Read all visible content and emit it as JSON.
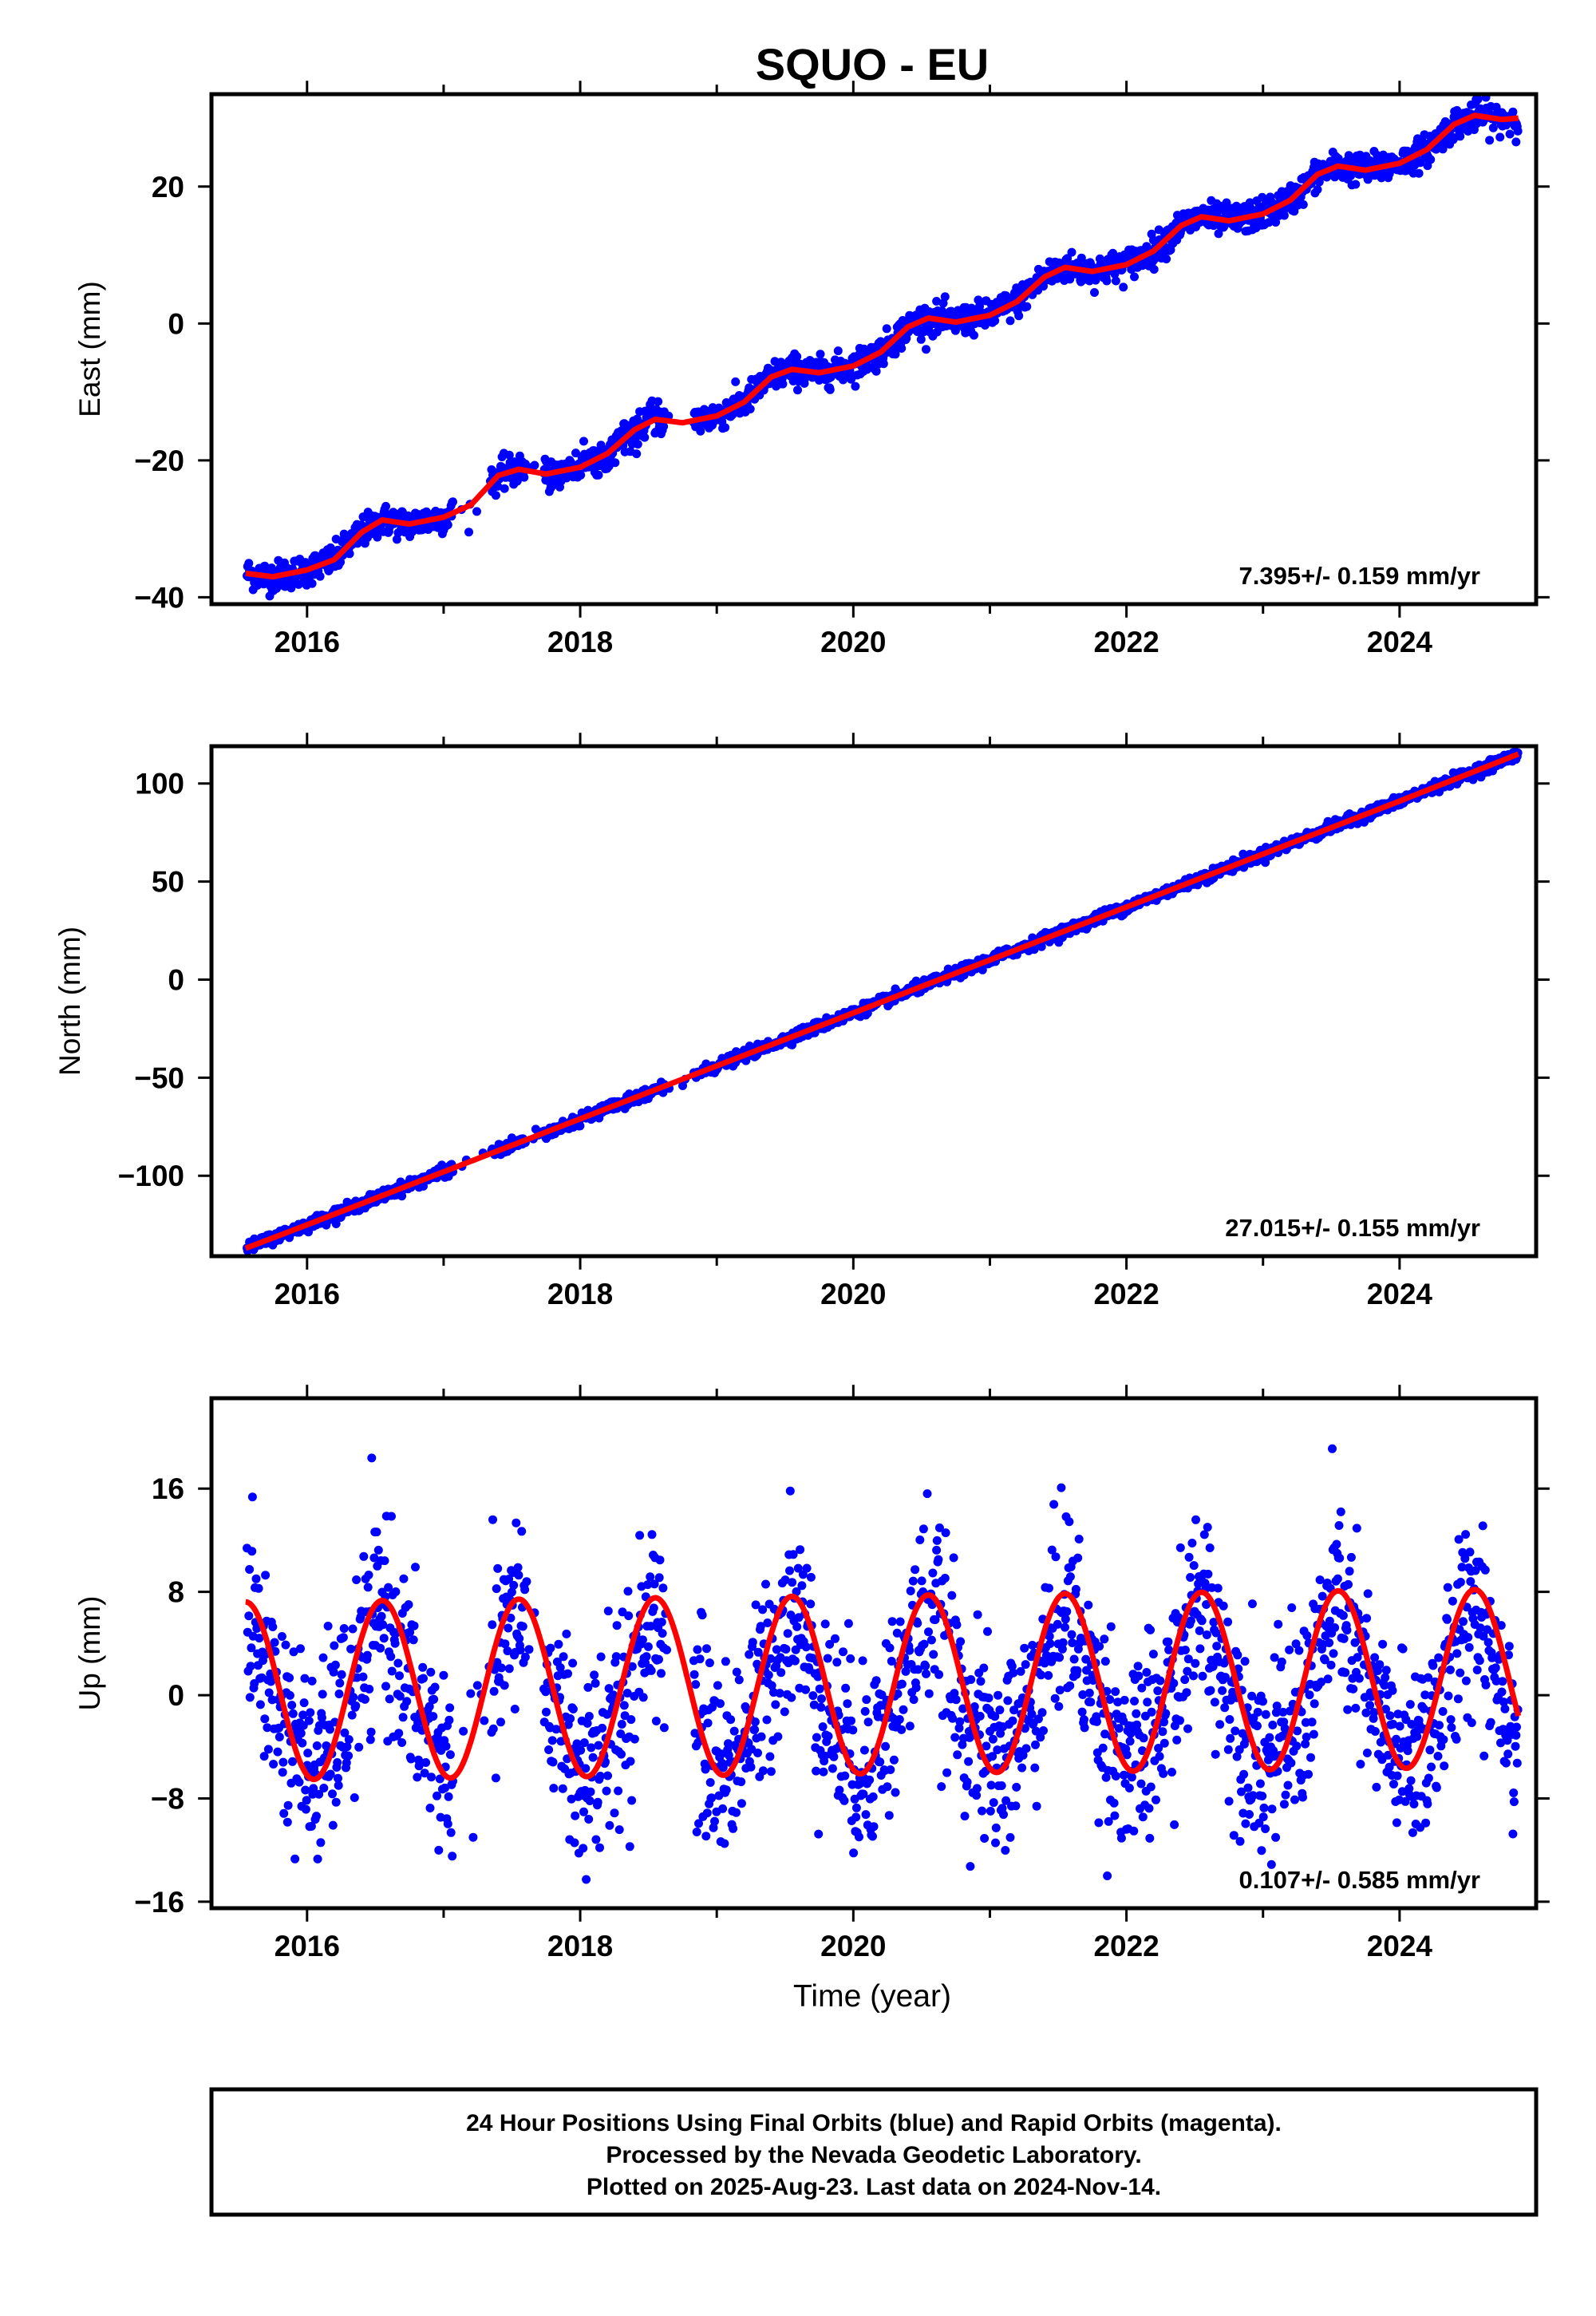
{
  "chart_data": {
    "title": "SQUO - EU",
    "xlabel": "Time (year)",
    "x_ticks": [
      "2016",
      "2018",
      "2020",
      "2022",
      "2024"
    ],
    "xlim": [
      2015.3,
      2025.0
    ],
    "colors": {
      "final_orbits": "#0000ff",
      "model": "#ff0000"
    },
    "panels": [
      {
        "type": "scatter",
        "ylabel": "East (mm)",
        "ylim": [
          -41,
          33.5
        ],
        "y_ticks": [
          20,
          0,
          -20,
          -40
        ],
        "rate_label": "7.395+/- 0.159 mm/yr",
        "series": [
          {
            "model_points": [
              [
                2015.55,
                -36.5
              ],
              [
                2015.75,
                -37
              ],
              [
                2016.0,
                -36
              ],
              [
                2016.2,
                -34.5
              ],
              [
                2016.4,
                -30.5
              ],
              [
                2016.55,
                -28.7
              ],
              [
                2016.75,
                -29.3
              ],
              [
                2017.0,
                -28.3
              ],
              [
                2017.2,
                -26.5
              ],
              [
                2017.4,
                -22.2
              ],
              [
                2017.55,
                -21.3
              ],
              [
                2017.75,
                -22
              ],
              [
                2018.0,
                -21
              ],
              [
                2018.2,
                -19
              ],
              [
                2018.4,
                -15.5
              ],
              [
                2018.55,
                -14
              ],
              [
                2018.75,
                -14.5
              ],
              [
                2019.0,
                -13.5
              ],
              [
                2019.2,
                -11.5
              ],
              [
                2019.4,
                -7.8
              ],
              [
                2019.55,
                -6.7
              ],
              [
                2019.75,
                -7.2
              ],
              [
                2020.0,
                -6.2
              ],
              [
                2020.2,
                -4.2
              ],
              [
                2020.4,
                -0.5
              ],
              [
                2020.55,
                0.8
              ],
              [
                2020.75,
                0.2
              ],
              [
                2021.0,
                1.2
              ],
              [
                2021.2,
                3.2
              ],
              [
                2021.4,
                6.8
              ],
              [
                2021.55,
                8.2
              ],
              [
                2021.75,
                7.6
              ],
              [
                2022.0,
                8.6
              ],
              [
                2022.2,
                10.6
              ],
              [
                2022.4,
                14.3
              ],
              [
                2022.55,
                15.6
              ],
              [
                2022.75,
                15.0
              ],
              [
                2023.0,
                16.0
              ],
              [
                2023.2,
                18.0
              ],
              [
                2023.4,
                21.8
              ],
              [
                2023.55,
                23.0
              ],
              [
                2023.75,
                22.4
              ],
              [
                2024.0,
                23.4
              ],
              [
                2024.2,
                25.4
              ],
              [
                2024.4,
                29.1
              ],
              [
                2024.55,
                30.4
              ],
              [
                2024.75,
                29.8
              ],
              [
                2024.87,
                30
              ]
            ],
            "scatter_sd": 1.1,
            "gaps": [
              [
                2017.07,
                2017.35
              ],
              [
                2017.6,
                2017.73
              ],
              [
                2018.62,
                2018.83
              ]
            ]
          }
        ]
      },
      {
        "type": "scatter",
        "ylabel": "North (mm)",
        "ylim": [
          -141,
          119
        ],
        "y_ticks": [
          100,
          50,
          0,
          -50,
          -100
        ],
        "rate_label": "27.015+/- 0.155 mm/yr",
        "series": [
          {
            "model_points": [
              [
                2015.55,
                -137
              ],
              [
                2016.0,
                -125
              ],
              [
                2017.0,
                -98
              ],
              [
                2018.0,
                -71
              ],
              [
                2019.0,
                -44
              ],
              [
                2020.0,
                -17
              ],
              [
                2021.0,
                10
              ],
              [
                2022.0,
                37
              ],
              [
                2023.0,
                64
              ],
              [
                2024.0,
                91
              ],
              [
                2024.87,
                115
              ]
            ],
            "scatter_sd": 1.4,
            "gaps": [
              [
                2017.07,
                2017.35
              ],
              [
                2017.6,
                2017.73
              ],
              [
                2018.62,
                2018.83
              ]
            ]
          }
        ]
      },
      {
        "type": "scatter",
        "ylabel": "Up (mm)",
        "ylim": [
          -16.5,
          23
        ],
        "y_ticks": [
          16,
          8,
          0,
          -8,
          -16
        ],
        "rate_label": "0.107+/- 0.585 mm/yr",
        "series": [
          {
            "model_points": [
              [
                2015.55,
                6.5
              ],
              [
                2015.8,
                -1
              ],
              [
                2016.05,
                -6.3
              ],
              [
                2016.3,
                -1
              ],
              [
                2016.55,
                7.4
              ],
              [
                2016.8,
                -1
              ],
              [
                2017.05,
                -6.2
              ],
              [
                2017.3,
                -1
              ],
              [
                2017.55,
                7.5
              ],
              [
                2017.8,
                -1
              ],
              [
                2018.05,
                -6.1
              ],
              [
                2018.3,
                -1
              ],
              [
                2018.55,
                7.6
              ],
              [
                2018.8,
                -1
              ],
              [
                2019.05,
                -6
              ],
              [
                2019.3,
                -1
              ],
              [
                2019.55,
                7.7
              ],
              [
                2019.8,
                -1
              ],
              [
                2020.05,
                -5.9
              ],
              [
                2020.3,
                -1
              ],
              [
                2020.55,
                7.8
              ],
              [
                2020.8,
                -1
              ],
              [
                2021.05,
                -5.8
              ],
              [
                2021.3,
                -1
              ],
              [
                2021.55,
                7.9
              ],
              [
                2021.8,
                -1
              ],
              [
                2022.05,
                -5.7
              ],
              [
                2022.3,
                -1
              ],
              [
                2022.55,
                8
              ],
              [
                2022.8,
                -1
              ],
              [
                2023.05,
                -5.6
              ],
              [
                2023.3,
                -1
              ],
              [
                2023.55,
                8.1
              ],
              [
                2023.8,
                -1
              ],
              [
                2024.05,
                -5.5
              ],
              [
                2024.3,
                -1
              ],
              [
                2024.55,
                8.2
              ],
              [
                2024.87,
                -3.5
              ]
            ],
            "scatter_sd": 3.8,
            "gaps": [
              [
                2017.07,
                2017.35
              ],
              [
                2017.6,
                2017.73
              ],
              [
                2018.62,
                2018.83
              ]
            ]
          }
        ]
      }
    ]
  },
  "footer": {
    "line1": "24 Hour Positions Using Final Orbits (blue) and Rapid Orbits (magenta).",
    "line2": "Processed by the Nevada Geodetic Laboratory.",
    "line3": "Plotted on 2025-Aug-23. Last data on 2024-Nov-14."
  }
}
